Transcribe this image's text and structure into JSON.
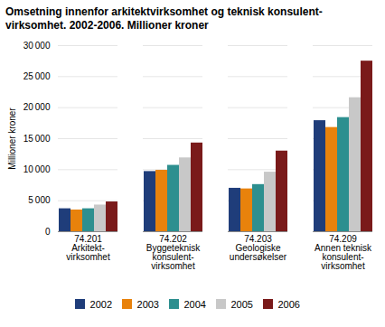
{
  "chart_data": {
    "type": "bar",
    "title": "Omsetning innenfor arkitektvirksomhet og teknisk konsulent-\nvirksomhet. 2002-2006. Millioner kroner",
    "ylabel": "Millioner kroner",
    "categories": [
      "74.201\nArkitekt-\nvirksomhet",
      "74.202\nByggeteknisk\nkonsulent-\nvirksomhet",
      "74.203\nGeologiske\nundersøkelser",
      "74.209\nAnnen teknisk\nkonsulent-\nvirksomhet"
    ],
    "series": [
      {
        "name": "2002",
        "color": "#1f3d7a",
        "values": [
          3700,
          9700,
          7000,
          17900
        ]
      },
      {
        "name": "2003",
        "color": "#e8820c",
        "values": [
          3500,
          9900,
          6900,
          16800
        ]
      },
      {
        "name": "2004",
        "color": "#2d8f8f",
        "values": [
          3700,
          10700,
          7600,
          18400
        ]
      },
      {
        "name": "2005",
        "color": "#c8c8c8",
        "values": [
          4300,
          11900,
          9600,
          21600
        ]
      },
      {
        "name": "2006",
        "color": "#7a1a1a",
        "values": [
          4800,
          14300,
          13000,
          27500
        ]
      }
    ],
    "ylim": [
      0,
      30000
    ],
    "yticks": [
      0,
      {
        "value": 5000,
        "label": "5 000"
      },
      {
        "value": 10000,
        "label": "10 000"
      },
      {
        "value": 15000,
        "label": "15 000"
      },
      {
        "value": 20000,
        "label": "20 000"
      },
      {
        "value": 25000,
        "label": "25 000"
      },
      {
        "value": 30000,
        "label": "30 000"
      }
    ],
    "grid": true,
    "legend": "bottom"
  }
}
